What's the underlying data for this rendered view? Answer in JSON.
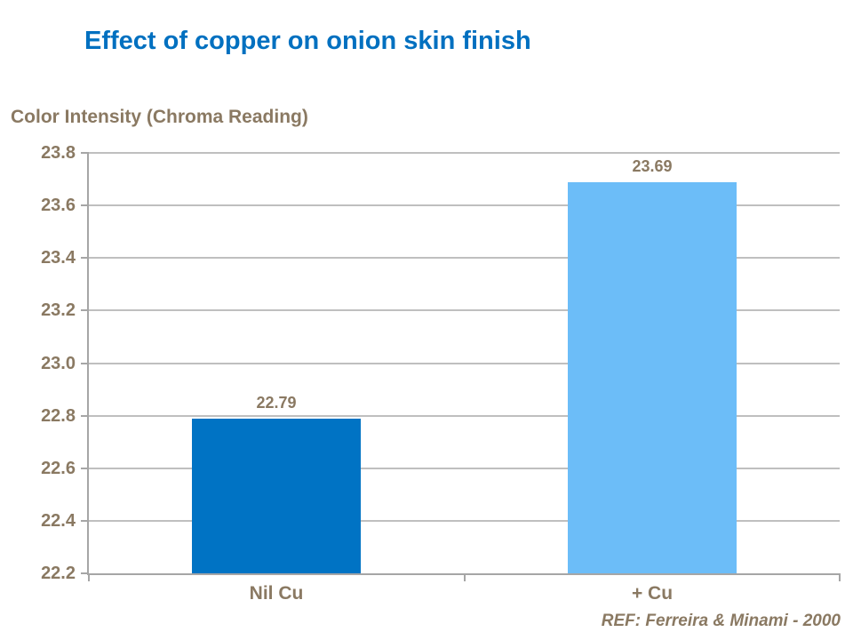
{
  "slide": {
    "title": "Effect of copper on onion skin finish",
    "reference": "REF: Ferreira & Minami - 2000"
  },
  "chart_data": {
    "type": "bar",
    "title": "Effect of copper on onion skin finish",
    "ylabel": "Color Intensity (Chroma Reading)",
    "xlabel": "",
    "categories": [
      "Nil Cu",
      "+ Cu"
    ],
    "values": [
      22.79,
      23.69
    ],
    "value_labels": [
      "22.79",
      "23.69"
    ],
    "ylim": [
      22.2,
      23.8
    ],
    "yticks": [
      22.2,
      22.4,
      22.6,
      22.8,
      23.0,
      23.2,
      23.4,
      23.6,
      23.8
    ],
    "grid": true,
    "legend_position": "none",
    "bar_colors": [
      "#0073C4",
      "#6CBDF8"
    ]
  },
  "colors": {
    "title_text": "#0070C0",
    "chart_text": "#8A7962",
    "gridline": "#BFBFBF",
    "axis_line": "#A6A6A6",
    "background": "#FFFFFF"
  }
}
